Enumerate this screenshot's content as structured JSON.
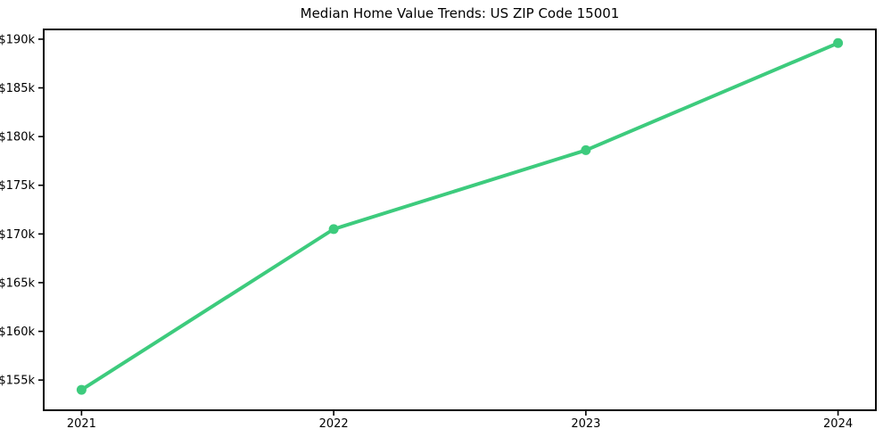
{
  "chart_data": {
    "type": "line",
    "title": "Median Home Value Trends: US ZIP Code 15001",
    "x": [
      2021,
      2022,
      2023,
      2024
    ],
    "values": [
      154000,
      170500,
      178600,
      189600
    ],
    "xtick_labels": [
      "2021",
      "2022",
      "2023",
      "2024"
    ],
    "yticks": [
      155000,
      160000,
      165000,
      170000,
      175000,
      180000,
      185000,
      190000
    ],
    "ytick_labels": [
      "$155k",
      "$160k",
      "$165k",
      "$170k",
      "$175k",
      "$180k",
      "$185k",
      "$190k"
    ],
    "xlabel": "",
    "ylabel": "",
    "xlim": [
      2020.85,
      2024.15
    ],
    "ylim": [
      151900,
      191000
    ],
    "grid": false,
    "legend": "none",
    "line_color": "#3dcb7d",
    "marker": "circle",
    "axis_color": "#000000",
    "background_color": "#ffffff"
  }
}
